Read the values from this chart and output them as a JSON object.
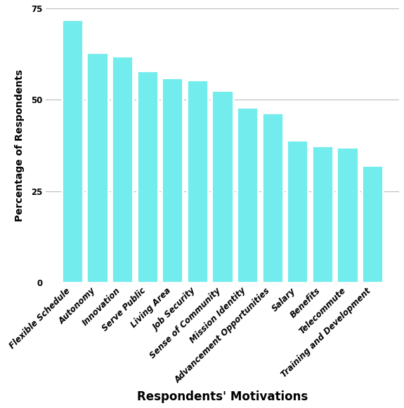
{
  "categories": [
    "Flexible Schedule",
    "Autonomy",
    "Innovation",
    "Serve Public",
    "Living Area",
    "Job Security",
    "Sense of Community",
    "Mission Identity",
    "Advancement Opportunities",
    "Salary",
    "Benefits",
    "Telecommute",
    "Training and Development"
  ],
  "values": [
    72,
    63,
    62,
    58,
    56,
    55.5,
    52.5,
    48,
    46.5,
    39,
    37.5,
    37,
    32
  ],
  "bar_color": "#72ECEC",
  "xlabel": "Respondents' Motivations",
  "ylabel": "Percentage of Respondents",
  "ylim": [
    0,
    75
  ],
  "yticks": [
    0,
    25,
    50,
    75
  ],
  "background_color": "#ffffff",
  "grid_color": "#bbbbbb",
  "xlabel_fontsize": 12,
  "ylabel_fontsize": 10,
  "tick_fontsize": 8.5,
  "bar_width": 0.85
}
